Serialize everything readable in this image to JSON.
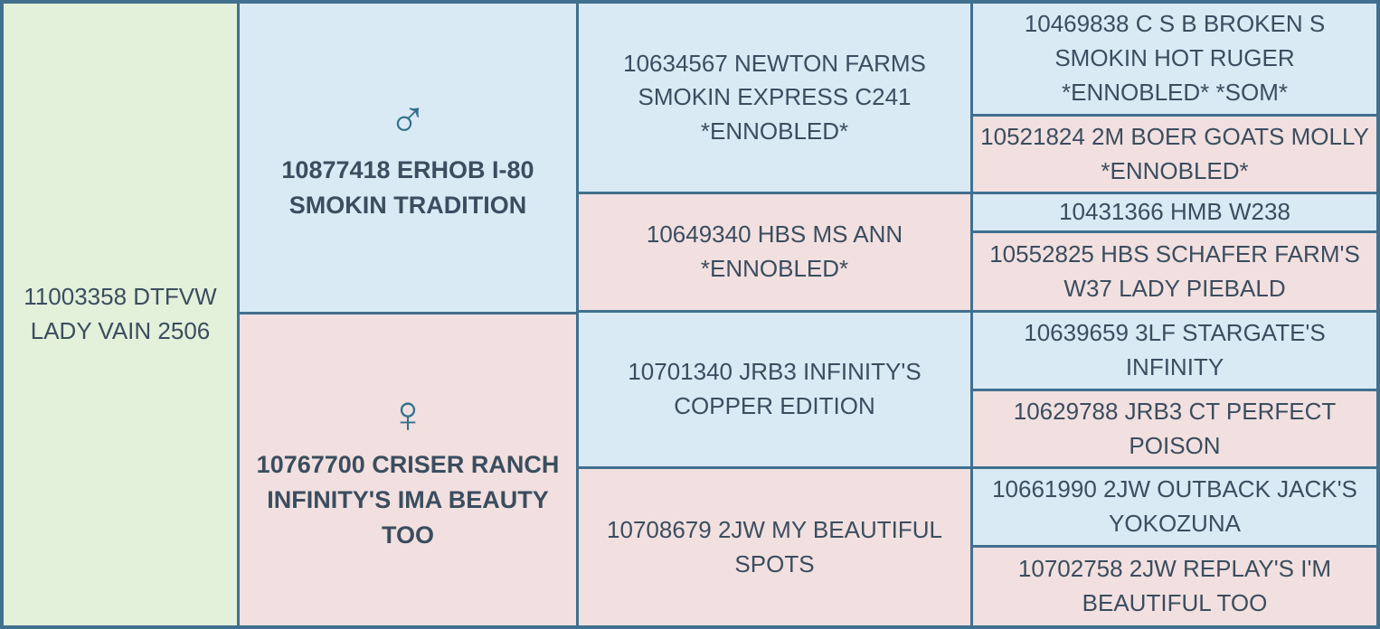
{
  "colors": {
    "border": "#41708f",
    "subject_bg": "#e3f0da",
    "male_bg": "#d9eaf4",
    "female_bg": "#f1e0df",
    "text": "#3b4d5f",
    "icon": "#33708f"
  },
  "pedigree": {
    "subject": {
      "label": "11003358 DTFVW LADY VAIN 2506"
    },
    "sire": {
      "label": "10877418 ERHOB I-80 SMOKIN TRADITION",
      "symbol": "♂",
      "sex": "male"
    },
    "dam": {
      "label": "10767700 CRISER RANCH INFINITY'S IMA BEAUTY TOO",
      "symbol": "♀",
      "sex": "female"
    },
    "grandparents": [
      {
        "label": "10634567 NEWTON FARMS SMOKIN EXPRESS C241 *ENNOBLED*",
        "sex": "male"
      },
      {
        "label": "10649340 HBS MS ANN *ENNOBLED*",
        "sex": "female"
      },
      {
        "label": "10701340 JRB3 INFINITY'S COPPER EDITION",
        "sex": "male"
      },
      {
        "label": "10708679 2JW MY BEAUTIFUL SPOTS",
        "sex": "female"
      }
    ],
    "great_grandparents": [
      {
        "label": "10469838 C S B BROKEN S SMOKIN HOT RUGER *ENNOBLED* *SOM*",
        "sex": "male"
      },
      {
        "label": "10521824 2M BOER GOATS MOLLY *ENNOBLED*",
        "sex": "female"
      },
      {
        "label": "10431366 HMB W238",
        "sex": "male"
      },
      {
        "label": "10552825 HBS SCHAFER FARM'S W37 LADY PIEBALD",
        "sex": "female"
      },
      {
        "label": "10639659 3LF STARGATE'S INFINITY",
        "sex": "male"
      },
      {
        "label": "10629788 JRB3 CT PERFECT POISON",
        "sex": "female"
      },
      {
        "label": "10661990 2JW OUTBACK JACK'S YOKOZUNA",
        "sex": "male"
      },
      {
        "label": "10702758 2JW REPLAY'S I'M BEAUTIFUL TOO",
        "sex": "female"
      }
    ]
  }
}
